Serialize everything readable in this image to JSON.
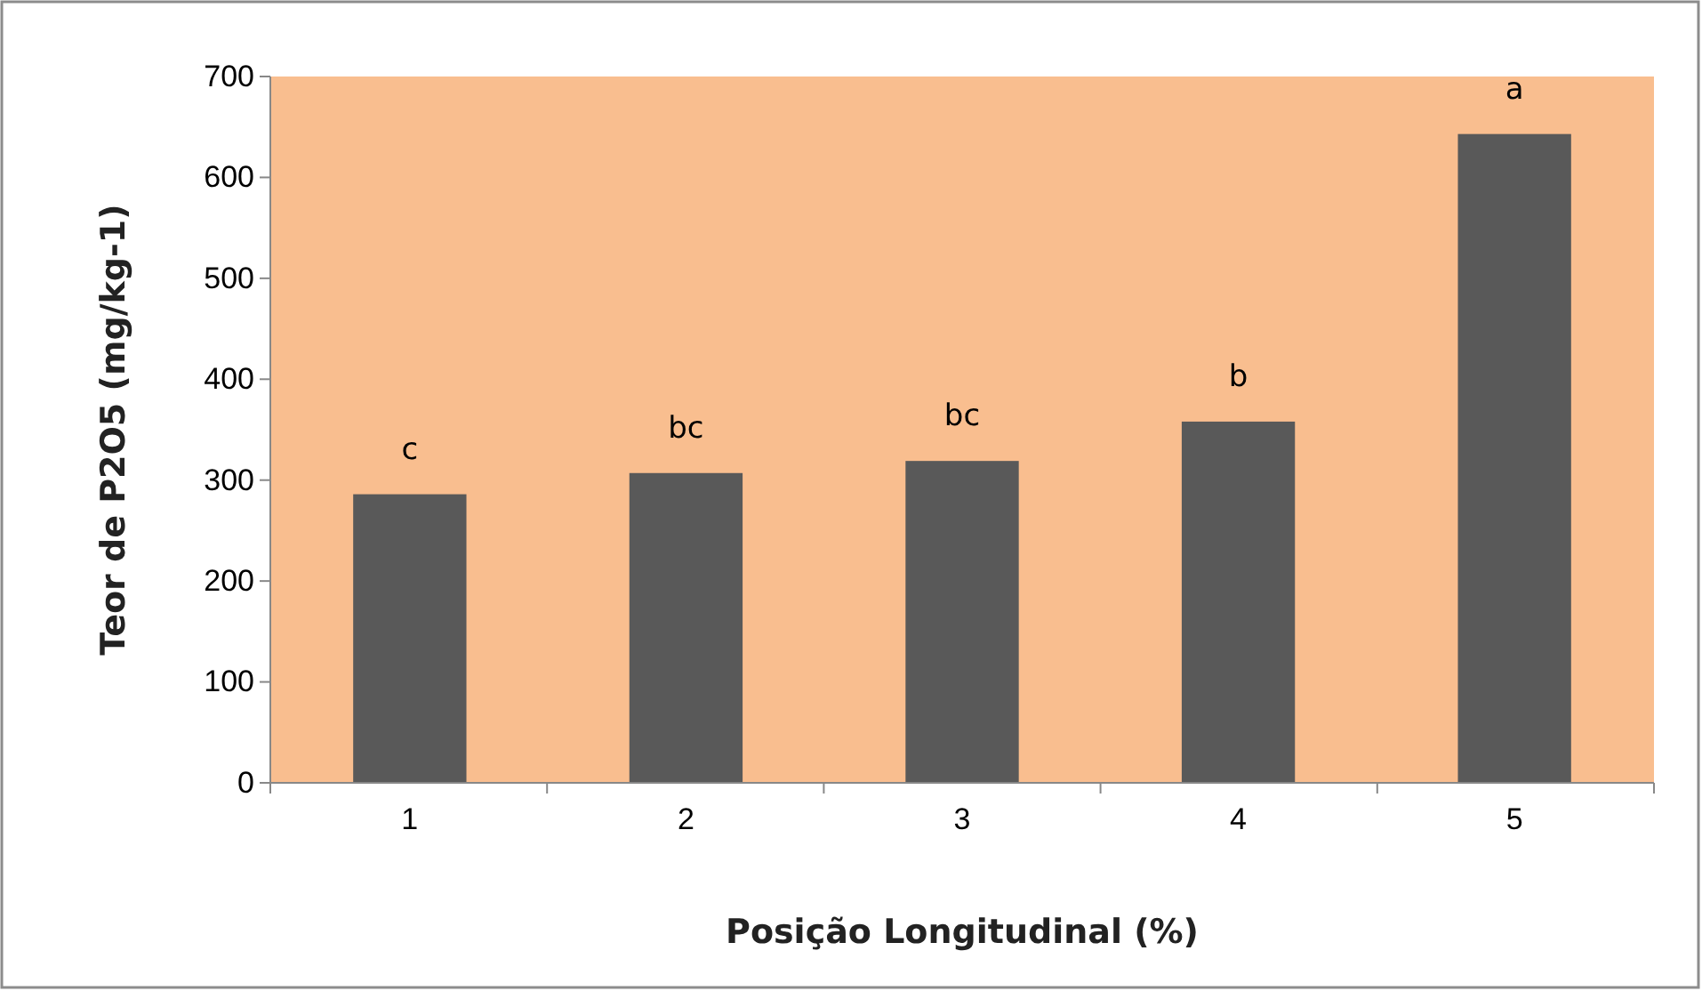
{
  "chart_data": {
    "type": "bar",
    "xlabel": "Posição Longitudinal (%)",
    "ylabel": "Teor de P2O5 (mg/kg-1)",
    "categories": [
      "1",
      "2",
      "3",
      "4",
      "5"
    ],
    "values": [
      286,
      307,
      319,
      358,
      643
    ],
    "color": "#595959",
    "ylim": [
      0,
      700
    ],
    "yticks": [
      0,
      100,
      200,
      300,
      400,
      500,
      600,
      700
    ],
    "grid": false,
    "annotations": [
      {
        "text": "c",
        "x": "1",
        "y": 286
      },
      {
        "text": "bc",
        "x": "2",
        "y": 307
      },
      {
        "text": "bc",
        "x": "3",
        "y": 319
      },
      {
        "text": "b",
        "x": "4",
        "y": 358
      },
      {
        "text": "a",
        "x": "5",
        "y": 643
      }
    ]
  }
}
